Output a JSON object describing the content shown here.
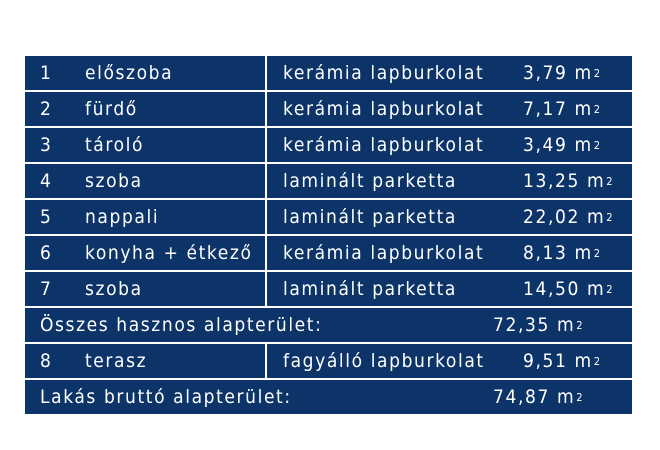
{
  "rooms": [
    {
      "num": "1",
      "name": "előszoba",
      "material": "kerámia lapburkolat",
      "area": "3,79 m",
      "unit_exp": "2"
    },
    {
      "num": "2",
      "name": "fürdő",
      "material": "kerámia lapburkolat",
      "area": "7,17 m",
      "unit_exp": "2"
    },
    {
      "num": "3",
      "name": "tároló",
      "material": "kerámia lapburkolat",
      "area": "3,49 m",
      "unit_exp": "2"
    },
    {
      "num": "4",
      "name": "szoba",
      "material": "laminált parketta",
      "area": "13,25 m",
      "unit_exp": "2"
    },
    {
      "num": "5",
      "name": "nappali",
      "material": "laminált parketta",
      "area": "22,02 m",
      "unit_exp": "2"
    },
    {
      "num": "6",
      "name": "konyha + étkező",
      "material": "kerámia lapburkolat",
      "area": "8,13 m",
      "unit_exp": "2"
    },
    {
      "num": "7",
      "name": "szoba",
      "material": "laminált parketta",
      "area": "14,50 m",
      "unit_exp": "2"
    }
  ],
  "useful_total": {
    "label": "Összes hasznos alapterület:",
    "area": "72,35 m",
    "unit_exp": "2"
  },
  "terrace": {
    "num": "8",
    "name": "terasz",
    "material": "fagyálló lapburkolat",
    "area": "9,51 m",
    "unit_exp": "2"
  },
  "gross_total": {
    "label": "Lakás bruttó alapterület:",
    "area": "74,87 m",
    "unit_exp": "2"
  },
  "colors": {
    "row_background": "#0d3468",
    "text": "#ffffff"
  }
}
